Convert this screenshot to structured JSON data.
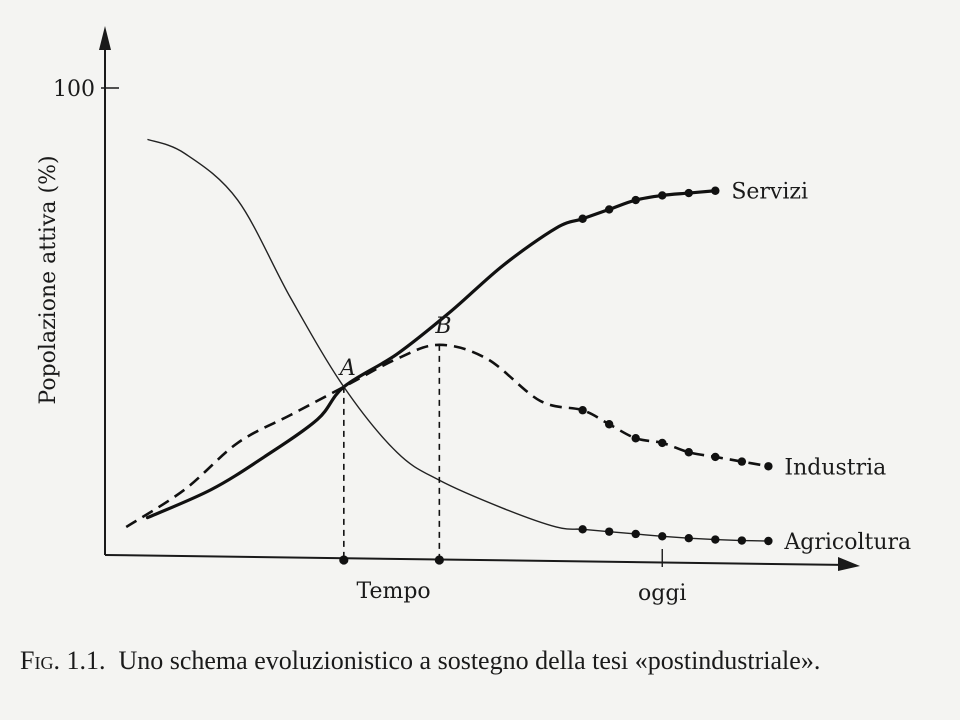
{
  "chart_data": {
    "type": "line",
    "ylabel": "Popolazione attiva (%)",
    "y_tick_labels": [
      "100"
    ],
    "x_axis_label": "Tempo",
    "x_tick_labels": [
      "oggi"
    ],
    "points": [
      {
        "name": "A",
        "x": 0.45,
        "y": 36
      },
      {
        "name": "B",
        "x": 0.63,
        "y": 45
      }
    ],
    "series": [
      {
        "name": "Servizi",
        "style": "solid-bold",
        "x": [
          0.08,
          0.2,
          0.3,
          0.4,
          0.45,
          0.55,
          0.65,
          0.75,
          0.85,
          0.9,
          0.95,
          1.0,
          1.05,
          1.1,
          1.15
        ],
        "y": [
          8,
          14,
          21,
          29,
          36,
          43,
          52,
          62,
          70,
          72,
          74,
          76,
          77,
          77.5,
          78
        ],
        "dotted_from_index": 9
      },
      {
        "name": "Industria",
        "style": "dashed",
        "x": [
          0.04,
          0.15,
          0.25,
          0.35,
          0.45,
          0.55,
          0.63,
          0.72,
          0.82,
          0.9,
          0.95,
          1.0,
          1.05,
          1.1,
          1.15,
          1.2,
          1.25
        ],
        "y": [
          6,
          14,
          24,
          30,
          36,
          42,
          45,
          42,
          33,
          31,
          28,
          25,
          24,
          22,
          21,
          20,
          19
        ],
        "dotted_from_index": 9
      },
      {
        "name": "Agricoltura",
        "style": "solid-thin",
        "x": [
          0.08,
          0.15,
          0.25,
          0.35,
          0.45,
          0.55,
          0.63,
          0.75,
          0.85,
          0.9,
          0.95,
          1.0,
          1.05,
          1.1,
          1.15,
          1.2,
          1.25
        ],
        "y": [
          89,
          86,
          76,
          55,
          36,
          22,
          16,
          10,
          6,
          5.5,
          5,
          4.5,
          4,
          3.6,
          3.3,
          3.1,
          3
        ],
        "dotted_from_index": 9
      }
    ],
    "xlim": [
      0,
      1.4
    ],
    "ylim": [
      0,
      100
    ],
    "grid": false,
    "legend": "inline labels at line ends"
  },
  "caption": {
    "number": "Fig. 1.1.",
    "text": "Uno schema evoluzionistico a sostegno della tesi «postindustriale»."
  }
}
